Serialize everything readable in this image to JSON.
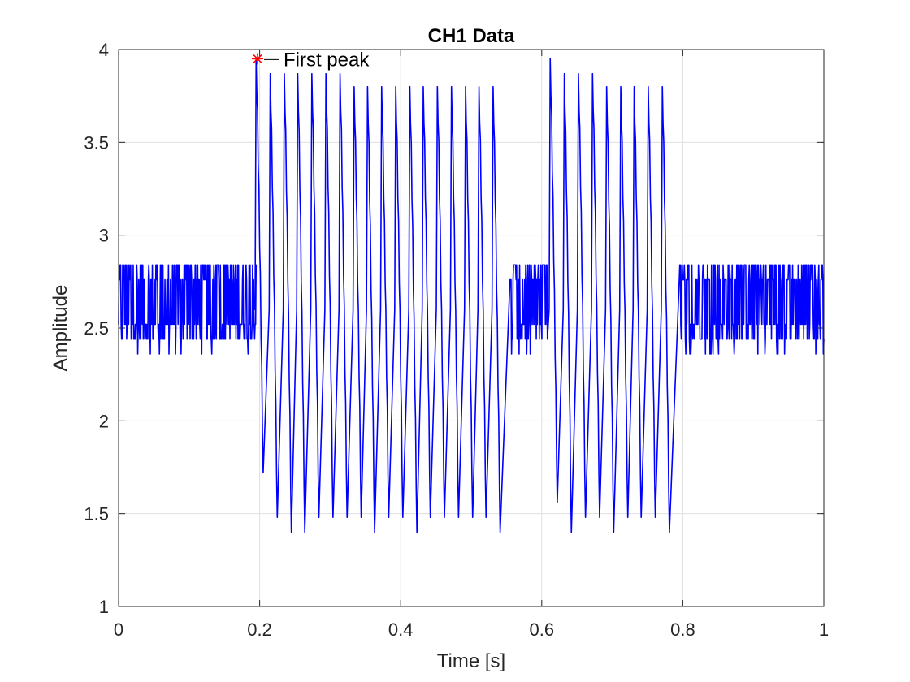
{
  "chart_data": {
    "type": "line",
    "title": "CH1 Data",
    "xlabel": "Time [s]",
    "ylabel": "Amplitude",
    "xlim": [
      0,
      1
    ],
    "ylim": [
      1,
      4
    ],
    "grid": true,
    "xticks": [
      0,
      0.2,
      0.4,
      0.6,
      0.8,
      1
    ],
    "xtick_labels": [
      "0",
      "0.2",
      "0.4",
      "0.6",
      "0.8",
      "1"
    ],
    "yticks": [
      1,
      1.5,
      2,
      2.5,
      3,
      3.5,
      4
    ],
    "ytick_labels": [
      "1",
      "1.5",
      "2",
      "2.5",
      "3",
      "3.5",
      "4"
    ],
    "series": [
      {
        "name": "CH1",
        "color": "#0000ff",
        "segments": [
          {
            "kind": "noise",
            "t_start": 0.0,
            "t_end": 0.195,
            "levels": [
              2.44,
              2.52,
              2.76,
              2.84
            ],
            "min": 2.36,
            "max": 2.84,
            "center": 2.64
          },
          {
            "kind": "oscillation",
            "t_start": 0.195,
            "t_end": 0.548,
            "peak_times": [
              0.195,
              0.215,
              0.235,
              0.254,
              0.274,
              0.294,
              0.314,
              0.334,
              0.353,
              0.373,
              0.393,
              0.413,
              0.432,
              0.452,
              0.472,
              0.492,
              0.511,
              0.531
            ],
            "peak_values": [
              3.95,
              3.87,
              3.87,
              3.87,
              3.87,
              3.87,
              3.87,
              3.8,
              3.8,
              3.8,
              3.8,
              3.8,
              3.8,
              3.8,
              3.8,
              3.8,
              3.8,
              3.8
            ],
            "trough_times": [
              0.205,
              0.225,
              0.245,
              0.264,
              0.284,
              0.304,
              0.324,
              0.344,
              0.363,
              0.383,
              0.403,
              0.423,
              0.442,
              0.462,
              0.482,
              0.502,
              0.521,
              0.541
            ],
            "trough_values": [
              1.72,
              1.48,
              1.4,
              1.4,
              1.48,
              1.48,
              1.48,
              1.48,
              1.4,
              1.48,
              1.48,
              1.4,
              1.48,
              1.48,
              1.48,
              1.48,
              1.48,
              1.4
            ]
          },
          {
            "kind": "noise",
            "t_start": 0.555,
            "t_end": 0.608,
            "levels": [
              2.44,
              2.52,
              2.76,
              2.84
            ],
            "min": 2.36,
            "max": 2.84,
            "center": 2.64
          },
          {
            "kind": "oscillation",
            "t_start": 0.608,
            "t_end": 0.788,
            "peak_times": [
              0.612,
              0.632,
              0.652,
              0.672,
              0.692,
              0.712,
              0.731,
              0.751,
              0.771
            ],
            "peak_values": [
              3.95,
              3.87,
              3.87,
              3.87,
              3.8,
              3.8,
              3.8,
              3.8,
              3.8
            ],
            "trough_times": [
              0.622,
              0.642,
              0.662,
              0.682,
              0.702,
              0.722,
              0.741,
              0.761,
              0.781
            ],
            "trough_values": [
              1.56,
              1.4,
              1.48,
              1.48,
              1.4,
              1.48,
              1.48,
              1.48,
              1.4
            ]
          },
          {
            "kind": "noise",
            "t_start": 0.795,
            "t_end": 1.0,
            "levels": [
              2.44,
              2.52,
              2.76,
              2.84
            ],
            "min": 2.36,
            "max": 2.84,
            "center": 2.64
          }
        ]
      }
    ],
    "annotations": [
      {
        "text": "First peak",
        "x": 0.197,
        "y": 3.95,
        "marker": "asterisk",
        "marker_color": "#ff0000"
      }
    ]
  }
}
